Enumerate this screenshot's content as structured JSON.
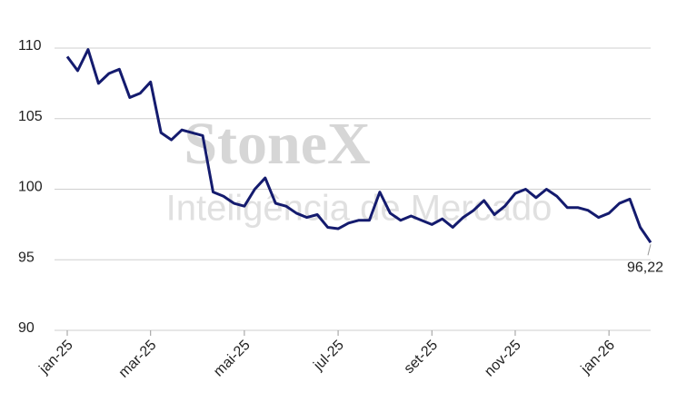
{
  "chart_data": {
    "type": "line",
    "watermark": [
      "StoneX",
      "Inteligência de Mercado"
    ],
    "categories": [
      "jan-25",
      null,
      null,
      null,
      null,
      null,
      null,
      null,
      "mar-25",
      null,
      null,
      null,
      null,
      null,
      null,
      null,
      null,
      "mai-25",
      null,
      null,
      null,
      null,
      null,
      null,
      null,
      null,
      "jul-25",
      null,
      null,
      null,
      null,
      null,
      null,
      null,
      null,
      "set-25",
      null,
      null,
      null,
      null,
      null,
      null,
      null,
      "nov-25",
      null,
      null,
      null,
      null,
      null,
      null,
      null,
      null,
      "jan-26",
      null,
      null,
      null,
      null
    ],
    "values": [
      109.4,
      108.4,
      109.9,
      107.5,
      108.2,
      108.5,
      106.5,
      106.8,
      107.6,
      104.0,
      103.5,
      104.2,
      104.0,
      103.8,
      99.8,
      99.5,
      99.0,
      98.8,
      100.0,
      100.8,
      99.0,
      98.8,
      98.3,
      98.0,
      98.2,
      97.3,
      97.2,
      97.6,
      97.8,
      97.8,
      99.8,
      98.3,
      97.8,
      98.1,
      97.8,
      97.5,
      97.9,
      97.3,
      98.0,
      98.5,
      99.2,
      98.2,
      98.8,
      99.7,
      100.0,
      99.4,
      100.0,
      99.5,
      98.7,
      98.7,
      98.5,
      98.0,
      98.3,
      99.0,
      99.3,
      97.3,
      96.22
    ],
    "value_labels": [
      null,
      null,
      null,
      null,
      null,
      null,
      null,
      null,
      null,
      null,
      null,
      null,
      null,
      null,
      null,
      null,
      null,
      null,
      null,
      null,
      null,
      null,
      null,
      null,
      null,
      null,
      null,
      null,
      null,
      null,
      null,
      null,
      null,
      null,
      null,
      null,
      null,
      null,
      null,
      null,
      null,
      null,
      null,
      null,
      null,
      null,
      null,
      null,
      null,
      null,
      null,
      null,
      null,
      null,
      null,
      null,
      "96,22"
    ],
    "color": "#141b6e",
    "ylim": [
      90,
      110
    ],
    "yticks": [
      90,
      95,
      100,
      105,
      110
    ],
    "grid": true
  }
}
